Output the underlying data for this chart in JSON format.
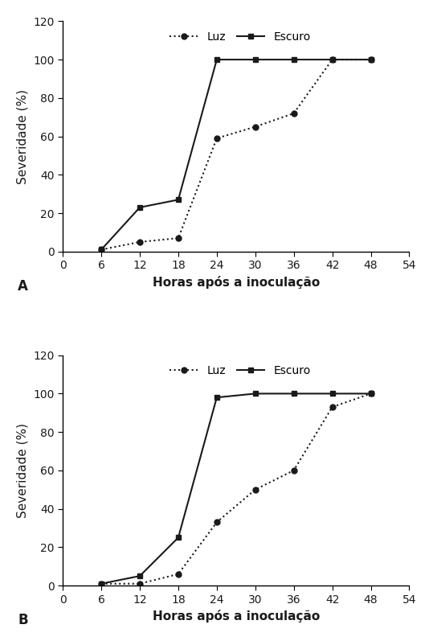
{
  "panel_A": {
    "luz_x": [
      6,
      12,
      18,
      24,
      30,
      36,
      42,
      48
    ],
    "luz_y": [
      1,
      5,
      7,
      59,
      65,
      72,
      100,
      100
    ],
    "escuro_x": [
      6,
      12,
      18,
      24,
      30,
      36,
      42,
      48
    ],
    "escuro_y": [
      1,
      23,
      27,
      100,
      100,
      100,
      100,
      100
    ]
  },
  "panel_B": {
    "luz_x": [
      6,
      12,
      18,
      24,
      30,
      36,
      42,
      48
    ],
    "luz_y": [
      1,
      1,
      6,
      33,
      50,
      60,
      93,
      100
    ],
    "escuro_x": [
      6,
      12,
      18,
      24,
      30,
      36,
      42,
      48
    ],
    "escuro_y": [
      1,
      5,
      25,
      98,
      100,
      100,
      100,
      100
    ]
  },
  "xlabel": "Horas após a inoculação",
  "ylabel": "Severidade (%)",
  "xlim": [
    0,
    54
  ],
  "ylim": [
    0,
    120
  ],
  "xticks": [
    0,
    6,
    12,
    18,
    24,
    30,
    36,
    42,
    48,
    54
  ],
  "yticks": [
    0,
    20,
    40,
    60,
    80,
    100,
    120
  ],
  "legend_luz": "Luz",
  "legend_escuro": "Escuro",
  "label_A": "A",
  "label_B": "B",
  "line_color": "#1a1a1a",
  "bg_color": "#ffffff",
  "fontsize_label": 11,
  "fontsize_tick": 10,
  "fontsize_legend": 10,
  "fontsize_panel": 12
}
